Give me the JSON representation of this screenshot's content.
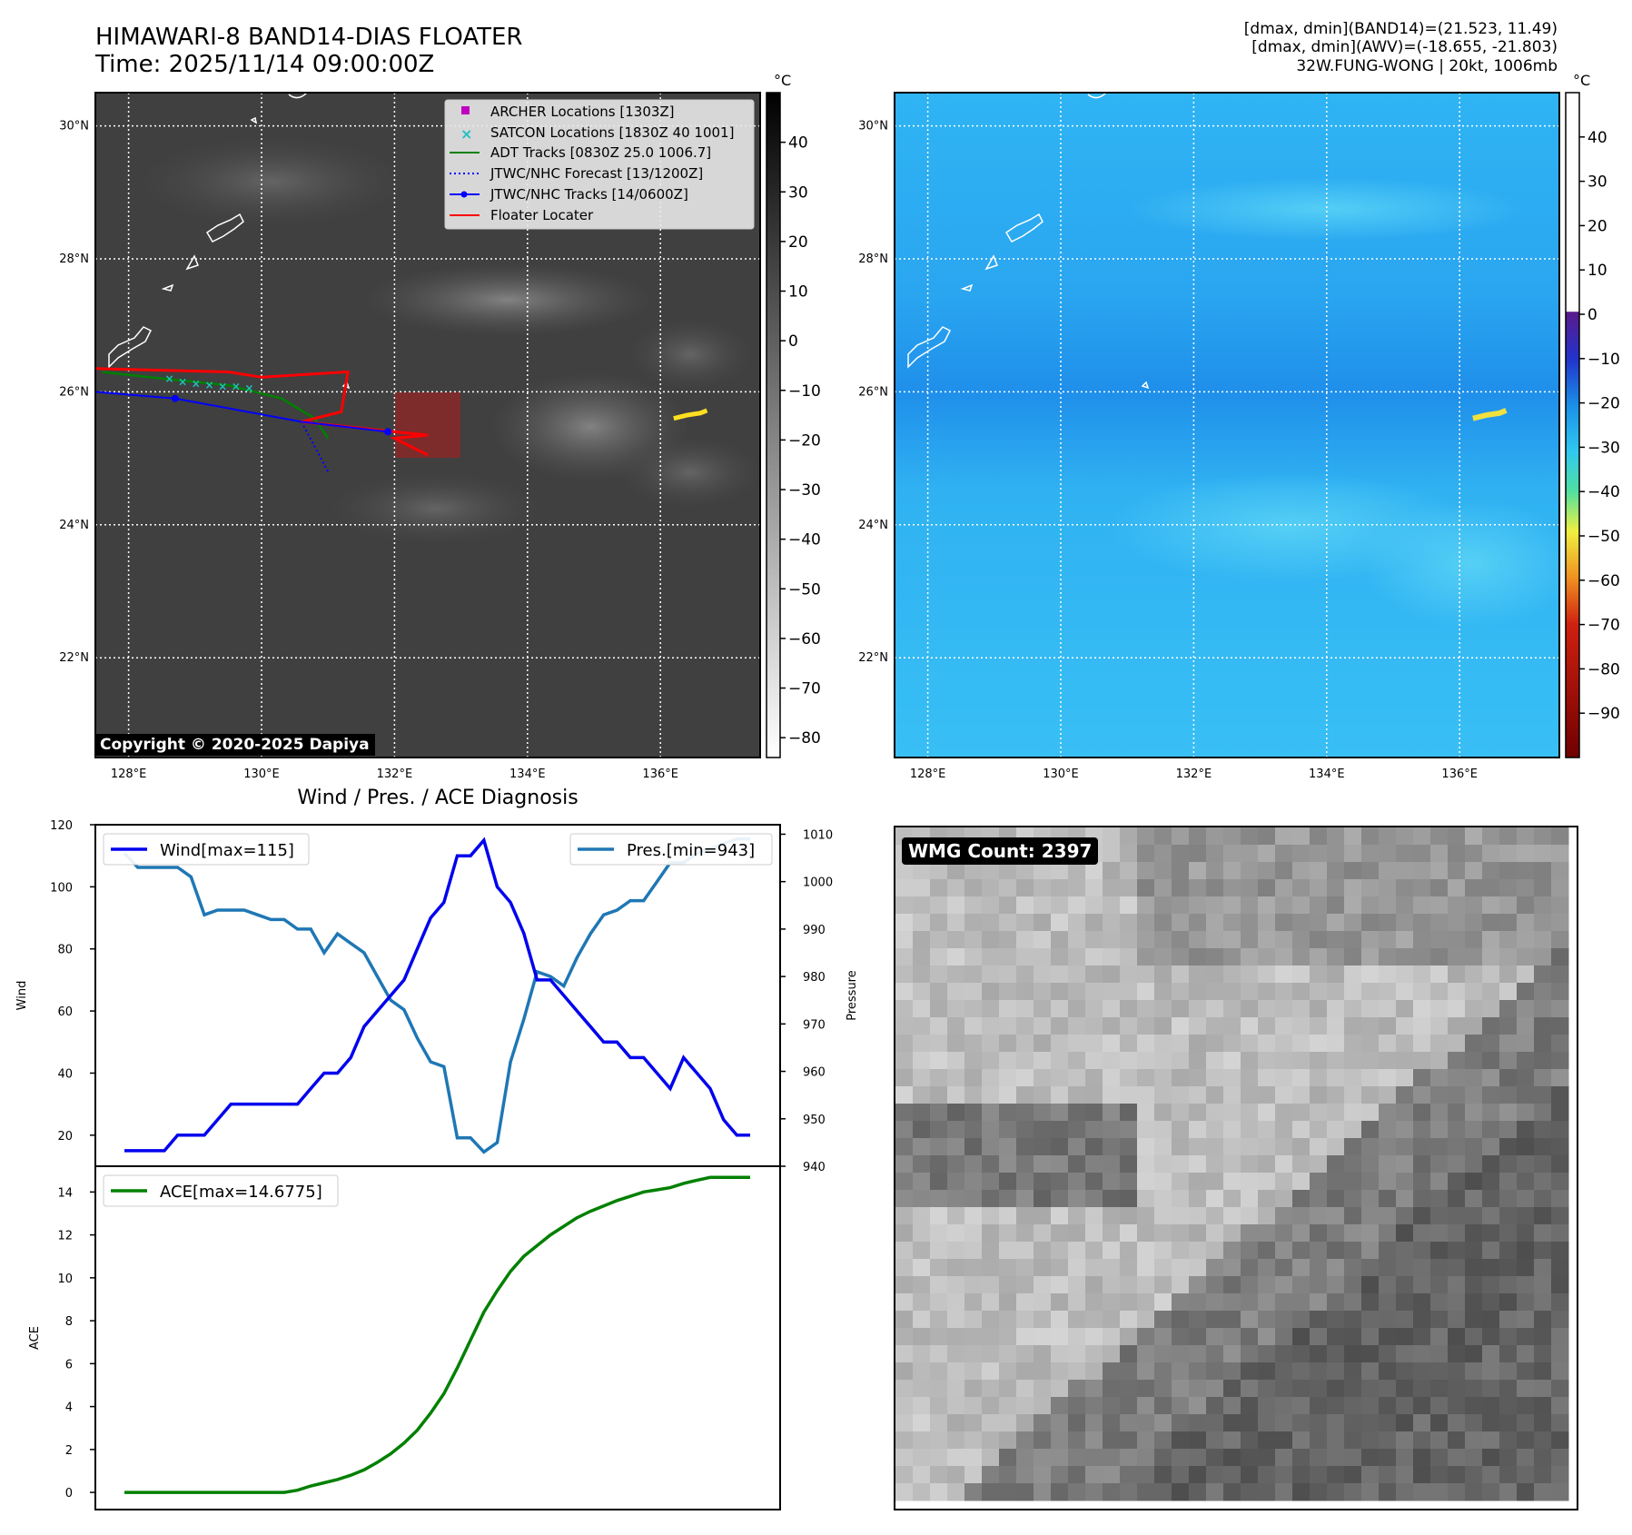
{
  "header": {
    "title_line1": "HIMAWARI-8 BAND14-DIAS FLOATER",
    "title_line2": "Time: 2025/11/14 09:00:00Z",
    "right_line1": "[dmax, dmin](BAND14)=(21.523, 11.49)",
    "right_line2": "[dmax, dmin](AWV)=(-18.655, -21.803)",
    "right_line3": "32W.FUNG-WONG | 20kt, 1006mb"
  },
  "map": {
    "lon_ticks": [
      "128°E",
      "130°E",
      "132°E",
      "134°E",
      "136°E"
    ],
    "lat_ticks": [
      "30°N",
      "28°N",
      "26°N",
      "24°N",
      "22°N"
    ],
    "lon_range": [
      127.5,
      137.5
    ],
    "lat_range": [
      20.5,
      30.5
    ],
    "lon_values": [
      128,
      130,
      132,
      134,
      136
    ],
    "lat_values": [
      30,
      28,
      26,
      24,
      22
    ],
    "copyright": "Copyright © 2020-2025 Dapiya",
    "legend": [
      {
        "label": "ARCHER Locations [1303Z]",
        "color": "#c000c0",
        "marker": "square"
      },
      {
        "label": "SATCON Locations [1830Z 40 1001]",
        "color": "#20c0c0",
        "marker": "x"
      },
      {
        "label": "ADT Tracks [0830Z 25.0 1006.7]",
        "color": "#008000",
        "marker": "line"
      },
      {
        "label": "JTWC/NHC Forecast [13/1200Z]",
        "color": "#0000ff",
        "marker": "dotted"
      },
      {
        "label": "JTWC/NHC Tracks [14/0600Z]",
        "color": "#0000ff",
        "marker": "line-dot"
      },
      {
        "label": "Floater Locater",
        "color": "#ff0000",
        "marker": "line"
      }
    ],
    "jtwc_track": [
      [
        127.5,
        26.0
      ],
      [
        128.7,
        25.9
      ],
      [
        130.6,
        25.55
      ],
      [
        131.9,
        25.4
      ]
    ],
    "jtwc_forecast": [
      [
        130.6,
        25.55
      ],
      [
        131.0,
        24.8
      ]
    ],
    "adt_track": [
      [
        127.6,
        26.3
      ],
      [
        128.5,
        26.2
      ],
      [
        129.5,
        26.1
      ],
      [
        130.3,
        25.9
      ],
      [
        130.8,
        25.6
      ],
      [
        131.0,
        25.3
      ]
    ],
    "satcon_points": [
      [
        128.6,
        26.2
      ],
      [
        128.8,
        26.15
      ],
      [
        129.0,
        26.12
      ],
      [
        129.2,
        26.1
      ],
      [
        129.4,
        26.08
      ],
      [
        129.6,
        26.08
      ],
      [
        129.8,
        26.05
      ]
    ],
    "floater_track": [
      [
        127.5,
        26.35
      ],
      [
        129.5,
        26.3
      ],
      [
        130.0,
        26.22
      ],
      [
        131.3,
        26.3
      ],
      [
        131.2,
        25.7
      ],
      [
        130.6,
        25.55
      ],
      [
        132.0,
        25.4
      ],
      [
        132.5,
        25.35
      ],
      [
        132.0,
        25.3
      ],
      [
        132.5,
        25.05
      ]
    ],
    "floater_box": [
      [
        132.0,
        25.85
      ],
      [
        133.0,
        24.85
      ]
    ],
    "hot_spot": [
      [
        136.2,
        25.6
      ],
      [
        136.4,
        25.65
      ],
      [
        136.6,
        25.68
      ],
      [
        136.7,
        25.72
      ]
    ]
  },
  "colorbar_left": {
    "unit": "°C",
    "ticks": [
      "40",
      "30",
      "20",
      "10",
      "0",
      "−10",
      "−20",
      "−30",
      "−40",
      "−50",
      "−60",
      "−70",
      "−80"
    ],
    "tick_values": [
      40,
      30,
      20,
      10,
      0,
      -10,
      -20,
      -30,
      -40,
      -50,
      -60,
      -70,
      -80
    ],
    "range": [
      -84,
      50
    ]
  },
  "colorbar_right": {
    "unit": "°C",
    "ticks": [
      "40",
      "30",
      "20",
      "10",
      "0",
      "−10",
      "−20",
      "−30",
      "−40",
      "−50",
      "−60",
      "−70",
      "−80",
      "−90"
    ],
    "tick_values": [
      40,
      30,
      20,
      10,
      0,
      -10,
      -20,
      -30,
      -40,
      -50,
      -60,
      -70,
      -80,
      -90
    ],
    "range": [
      -100,
      50
    ]
  },
  "diagnosis": {
    "title": "Wind / Pres. / ACE Diagnosis",
    "wind_ylabel": "Wind",
    "pres_ylabel": "Pressure",
    "ace_ylabel": "ACE",
    "wind_legend": "Wind[max=115]",
    "pres_legend": "Pres.[min=943]",
    "ace_legend": "ACE[max=14.6775]",
    "wind_ticks": [
      "20",
      "40",
      "60",
      "80",
      "100",
      "120"
    ],
    "pres_ticks": [
      "940",
      "950",
      "960",
      "970",
      "980",
      "990",
      "1000",
      "1010"
    ],
    "ace_ticks": [
      "0",
      "2",
      "4",
      "6",
      "8",
      "10",
      "12",
      "14"
    ]
  },
  "wmg": {
    "label": "WMG Count: 2397"
  },
  "chart_data": [
    {
      "type": "line",
      "title": "Wind / Pres. / ACE Diagnosis",
      "ylabel": "Wind",
      "ylim": [
        10,
        120
      ],
      "series": [
        {
          "name": "Wind[max=115]",
          "color": "#0000ee",
          "values": [
            15,
            15,
            15,
            15,
            20,
            20,
            20,
            25,
            30,
            30,
            30,
            30,
            30,
            30,
            35,
            40,
            40,
            45,
            55,
            60,
            65,
            70,
            80,
            90,
            95,
            110,
            110,
            115,
            100,
            95,
            85,
            70,
            70,
            65,
            60,
            55,
            50,
            50,
            45,
            45,
            40,
            35,
            45,
            40,
            35,
            25,
            20,
            20
          ]
        }
      ]
    },
    {
      "type": "line",
      "ylabel": "Pressure",
      "ylim": [
        940,
        1012
      ],
      "series": [
        {
          "name": "Pres.[min=943]",
          "color": "#1f77b4",
          "values": [
            1006,
            1003,
            1003,
            1003,
            1003,
            1001,
            993,
            994,
            994,
            994,
            993,
            992,
            992,
            990,
            990,
            985,
            989,
            987,
            985,
            980,
            975,
            973,
            967,
            962,
            961,
            946,
            946,
            943,
            945,
            962,
            971,
            981,
            980,
            978,
            984,
            989,
            993,
            994,
            996,
            996,
            1000,
            1004,
            1004,
            1006,
            1007,
            1008,
            1009,
            1009
          ]
        }
      ]
    },
    {
      "type": "line",
      "ylabel": "ACE",
      "ylim": [
        -0.8,
        15.2
      ],
      "series": [
        {
          "name": "ACE[max=14.6775]",
          "color": "#008000",
          "values": [
            0,
            0,
            0,
            0,
            0,
            0,
            0,
            0,
            0,
            0,
            0,
            0,
            0,
            0.1,
            0.3,
            0.45,
            0.6,
            0.8,
            1.05,
            1.4,
            1.8,
            2.3,
            2.9,
            3.7,
            4.6,
            5.8,
            7.1,
            8.4,
            9.4,
            10.3,
            11.0,
            11.5,
            12.0,
            12.4,
            12.8,
            13.1,
            13.35,
            13.6,
            13.8,
            14.0,
            14.1,
            14.2,
            14.4,
            14.55,
            14.6775,
            14.6775,
            14.6775,
            14.6775
          ]
        }
      ]
    }
  ]
}
